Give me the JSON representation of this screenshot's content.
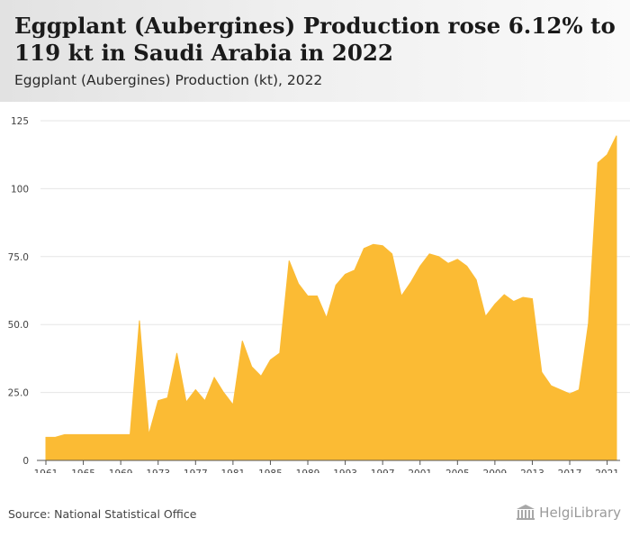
{
  "header": {
    "title": "Eggplant (Aubergines) Production rose 6.12% to 119 kt in Saudi Arabia in 2022",
    "subtitle": "Eggplant (Aubergines) Production (kt), 2022"
  },
  "footer": {
    "source": "Source: National Statistical Office",
    "brand": "HelgiLibrary"
  },
  "colors": {
    "fill": "#fbbb34",
    "grid": "#e6e6e6",
    "axis": "#555555"
  },
  "chart_data": {
    "type": "area",
    "x": [
      1961,
      1962,
      1963,
      1964,
      1965,
      1966,
      1967,
      1968,
      1969,
      1970,
      1971,
      1972,
      1973,
      1974,
      1975,
      1976,
      1977,
      1978,
      1979,
      1980,
      1981,
      1982,
      1983,
      1984,
      1985,
      1986,
      1987,
      1988,
      1989,
      1990,
      1991,
      1992,
      1993,
      1994,
      1995,
      1996,
      1997,
      1998,
      1999,
      2000,
      2001,
      2002,
      2003,
      2004,
      2005,
      2006,
      2007,
      2008,
      2009,
      2010,
      2011,
      2012,
      2013,
      2014,
      2015,
      2016,
      2017,
      2018,
      2019,
      2020,
      2021,
      2022
    ],
    "series": [
      {
        "values": [
          8.5,
          8.5,
          9.5,
          9.5,
          9.5,
          9.5,
          9.5,
          9.5,
          9.5,
          9.5,
          51.5,
          9.5,
          22,
          23,
          39.5,
          21.5,
          26,
          22,
          30.5,
          25,
          20.5,
          44,
          34.5,
          31,
          37,
          39.5,
          73.5,
          65,
          60.5,
          60.5,
          52.5,
          64.5,
          68.5,
          70,
          78,
          79.5,
          79,
          76,
          60.5,
          65.5,
          71.5,
          76,
          75,
          72.5,
          74,
          71.5,
          66.5,
          53,
          57.5,
          61,
          58.5,
          60,
          59.5,
          32.5,
          27.5,
          26,
          24.5,
          26,
          50.5,
          109.5,
          112.5,
          119.5
        ]
      }
    ],
    "ylim": [
      0,
      125
    ],
    "yticks": [
      0,
      25,
      50,
      75,
      100,
      125
    ],
    "ytick_labels": [
      "0",
      "25.0",
      "50.0",
      "75.0",
      "100",
      "125"
    ],
    "xticks": [
      1961,
      1965,
      1969,
      1973,
      1977,
      1981,
      1985,
      1989,
      1993,
      1997,
      2001,
      2005,
      2009,
      2013,
      2017,
      2021
    ],
    "grid": true,
    "xlabel": "",
    "ylabel": ""
  }
}
